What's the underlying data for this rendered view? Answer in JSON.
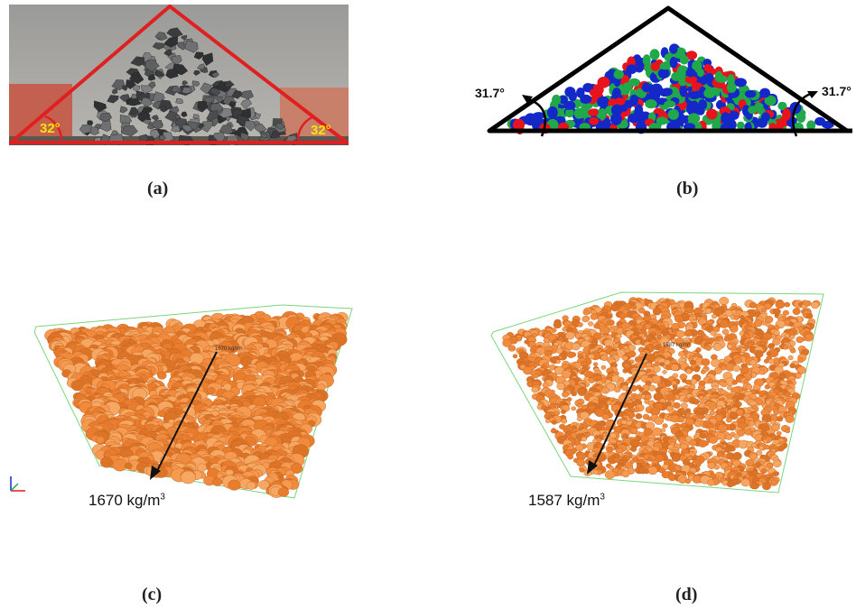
{
  "panels": {
    "a": {
      "caption": "(a)",
      "angle_left": "32°",
      "angle_right": "32°"
    },
    "b": {
      "caption": "(b)",
      "angle_left": "31.7°",
      "angle_right": "31.7°"
    },
    "c": {
      "caption": "(c)",
      "density_value": "1670 kg/m",
      "density_exp": "3",
      "inner_label": "1670 kg/m³"
    },
    "d": {
      "caption": "(d)",
      "density_value": "1587 kg/m",
      "density_exp": "3",
      "inner_label": "1587 kg/m³"
    }
  },
  "colors": {
    "triangle_red": "#e02020",
    "angle_yellow": "#f2e600",
    "particle_orange": "#f08a3c",
    "particle_red": "#e8131b",
    "particle_green": "#20a84a",
    "particle_blue": "#1428c8",
    "box_green": "#7bd67b"
  }
}
